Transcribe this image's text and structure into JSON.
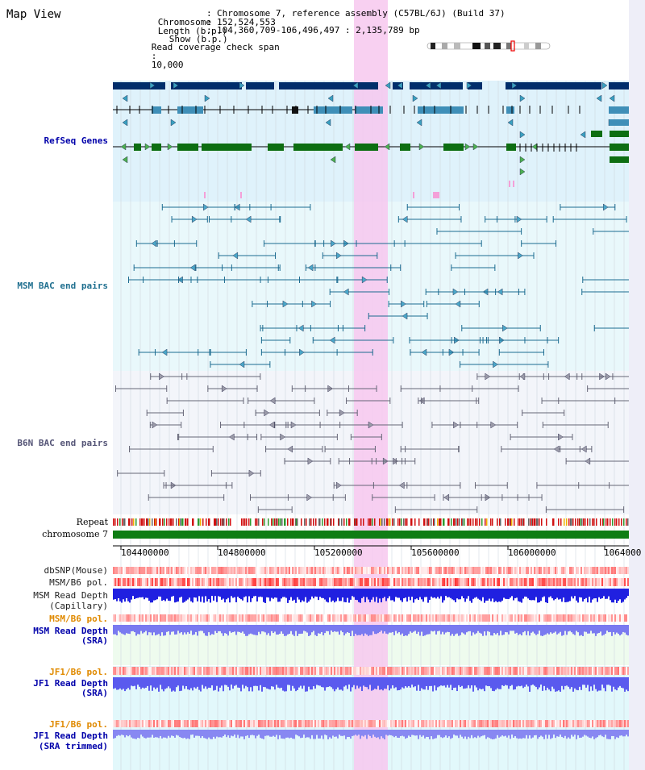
{
  "view_title": "Map View",
  "header": {
    "chromosome_label": "Chromosome",
    "chromosome_value": "Chromosome 7, reference assembly (C57BL/6J) (Build 37)",
    "length_label": "Length (b.p.)",
    "length_value": "152,524,553",
    "show_label": "Show (b.p.)",
    "show_value": "104,360,709-106,496,497 : 2,135,789 bp",
    "span_label": "Read coverage check span",
    "span_value": "10,000",
    "sep": ":"
  },
  "tracks": {
    "refseq": "RefSeq Genes",
    "msm_bac": "MSM BAC end pairs",
    "b6n_bac": "B6N BAC end pairs",
    "repeat": "Repeat",
    "chromosome": "chromosome 7",
    "dbsnp": "dbSNP(Mouse)",
    "msm_pol": "MSM/B6 pol.",
    "msm_depth_cap_1": "MSM Read Depth",
    "msm_depth_cap_2": "(Capillary)",
    "msm_pol_2": "MSM/B6 pol.",
    "msm_depth_sra_1": "MSM Read Depth",
    "msm_depth_sra_2": "(SRA)",
    "jf1_pol": "JF1/B6 pol.",
    "jf1_depth_sra_1": "JF1 Read Depth",
    "jf1_depth_sra_2": "(SRA)",
    "jf1_pol_2": "JF1/B6 pol.",
    "jf1_depth_trim_1": "JF1 Read Depth",
    "jf1_depth_trim_2": "(SRA trimmed)"
  },
  "axis": {
    "ticks": [
      "104400000",
      "104800000",
      "105200000",
      "105600000",
      "106000000",
      "1064000"
    ]
  },
  "colors": {
    "refseq_bg": "#dff2fb",
    "msm_bg": "#e9f8fb",
    "b6n_bg": "#f3f5fa",
    "highlight": "#f7c8ef",
    "gene_dark": "#002e6b",
    "gene_mid": "#3f8fb8",
    "gene_green": "#0d6e12",
    "chromosome": "#0f7d14",
    "label_blue": "#0000aa",
    "label_teal": "#1f6f8f",
    "label_orange": "#e08a00"
  }
}
